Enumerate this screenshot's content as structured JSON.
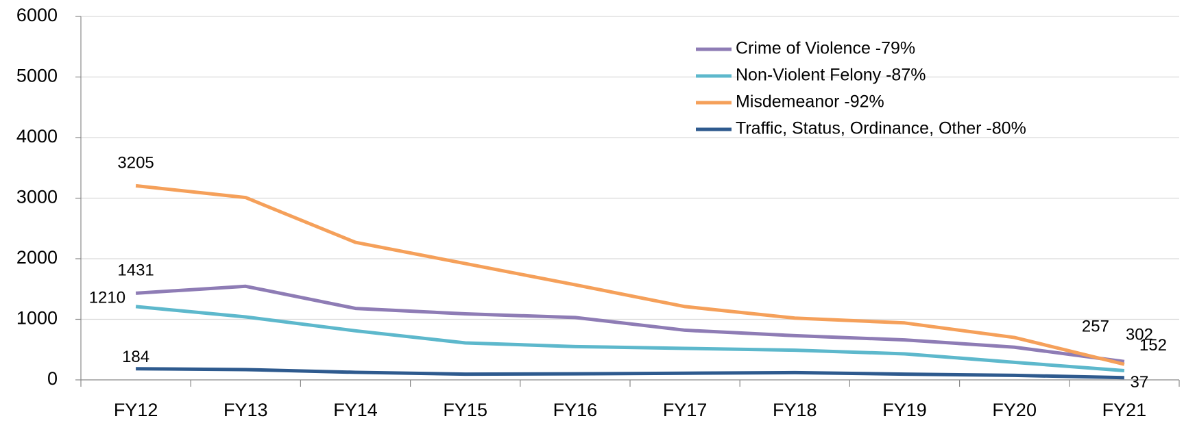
{
  "chart_data": {
    "type": "line",
    "categories": [
      "FY12",
      "FY13",
      "FY14",
      "FY15",
      "FY16",
      "FY17",
      "FY18",
      "FY19",
      "FY20",
      "FY21"
    ],
    "series": [
      {
        "name": "Crime of Violence -79%",
        "color": "#8e7cb5",
        "values": [
          1431,
          1545,
          1180,
          1090,
          1030,
          820,
          730,
          660,
          540,
          302
        ]
      },
      {
        "name": "Non-Violent Felony -87%",
        "color": "#5db8cc",
        "values": [
          1210,
          1040,
          810,
          610,
          550,
          520,
          490,
          430,
          290,
          152
        ]
      },
      {
        "name": "Misdemeanor -92%",
        "color": "#f5a05a",
        "values": [
          3205,
          3010,
          2270,
          1920,
          1570,
          1210,
          1020,
          940,
          700,
          257
        ]
      },
      {
        "name": "Traffic, Status, Ordinance, Other -80%",
        "color": "#2e5a8e",
        "values": [
          184,
          170,
          125,
          95,
          100,
          110,
          120,
          95,
          75,
          37
        ]
      }
    ],
    "ylim": [
      0,
      6000
    ],
    "yticks": [
      0,
      1000,
      2000,
      3000,
      4000,
      5000,
      6000
    ],
    "grid": true,
    "legend": "top-right"
  }
}
